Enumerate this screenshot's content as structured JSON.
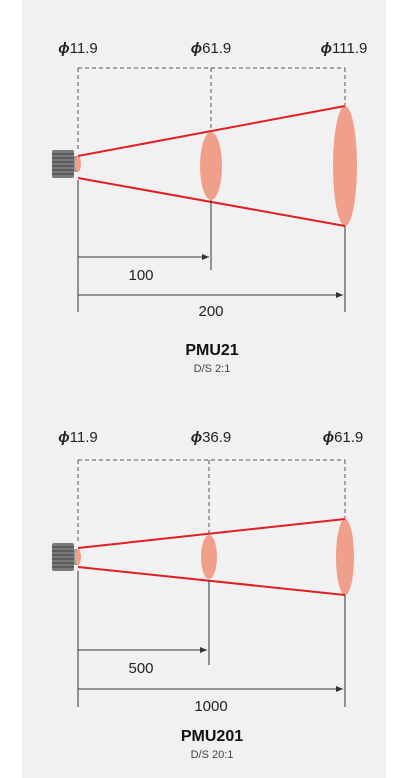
{
  "colors": {
    "background": "#f1f1f1",
    "beam": "#e31e24",
    "spot": "#f0a08a",
    "spot_edge": "#ec8f78",
    "line": "#333333"
  },
  "diagrams": [
    {
      "model": "PMU21",
      "ratio": "D/S 2:1",
      "spot_symbol": "ϕ",
      "spot_values": [
        "11.9",
        "61.9",
        "111.9"
      ],
      "distances": [
        "100",
        "200"
      ]
    },
    {
      "model": "PMU201",
      "ratio": "D/S 20:1",
      "spot_symbol": "ϕ",
      "spot_values": [
        "11.9",
        "36.9",
        "61.9"
      ],
      "distances": [
        "500",
        "1000"
      ]
    }
  ]
}
